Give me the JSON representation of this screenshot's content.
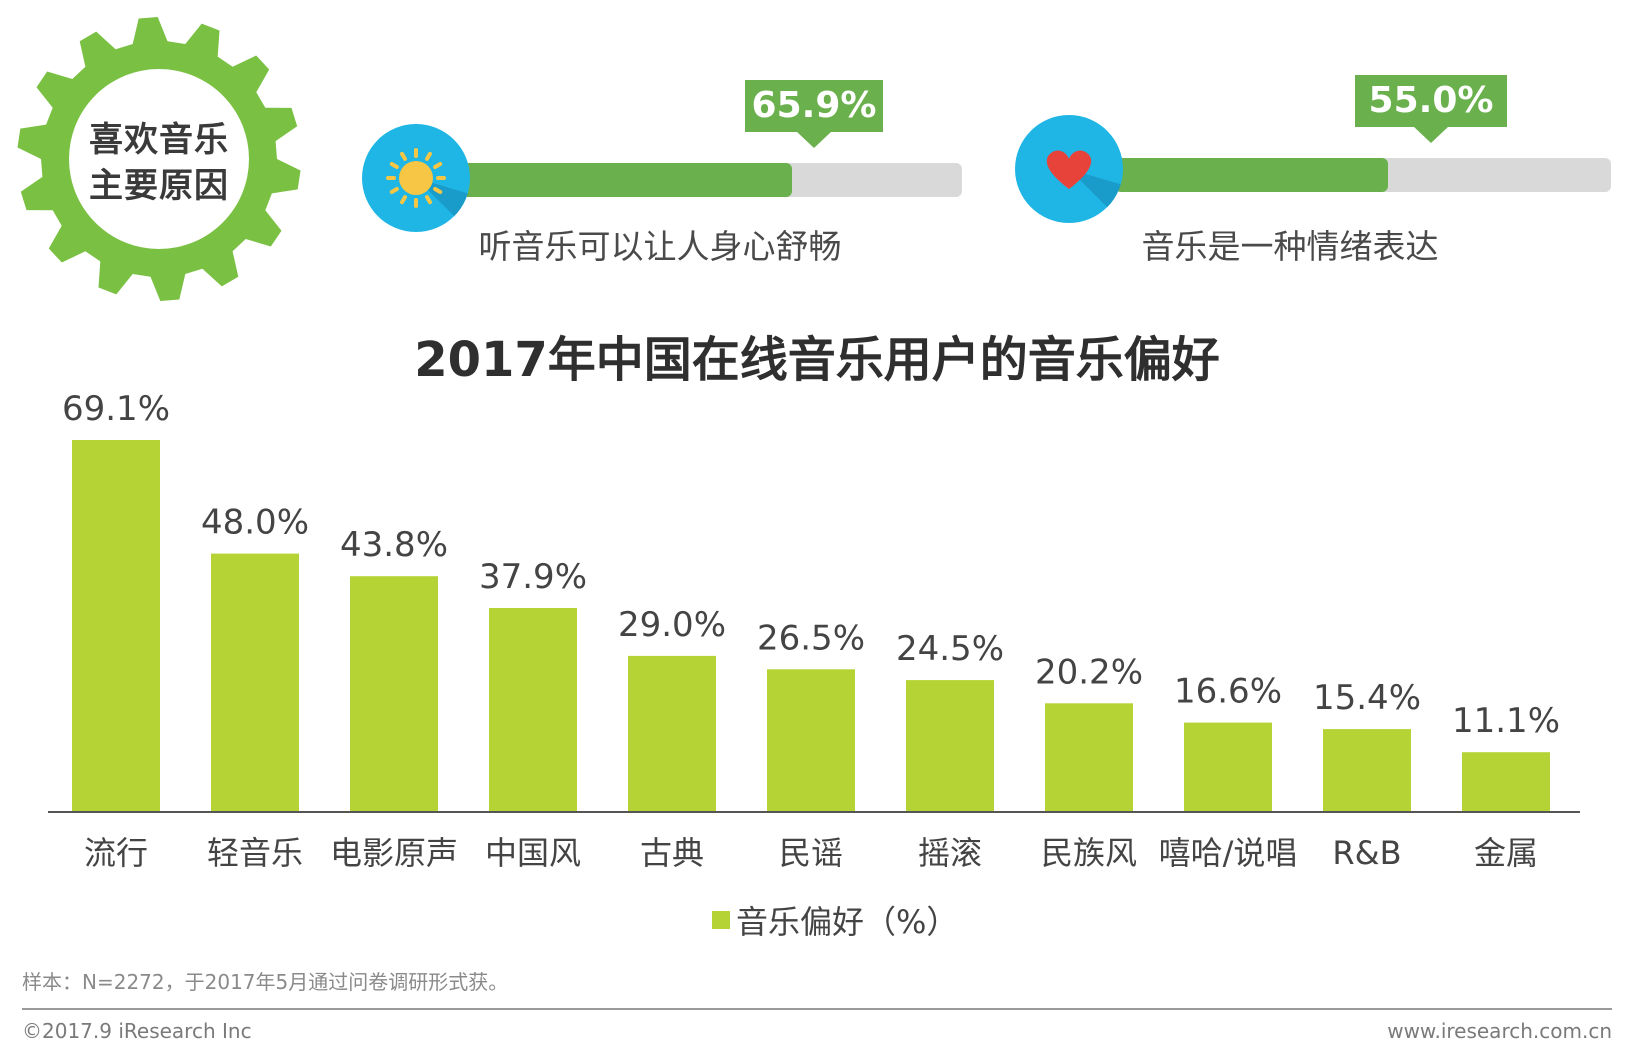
{
  "badge": {
    "line1": "喜欢音乐",
    "line2": "主要原因"
  },
  "reasons": [
    {
      "label": "听音乐可以让人身心舒畅",
      "percent_text": "65.9%",
      "value": 65.9,
      "icon": "sun-icon"
    },
    {
      "label": "音乐是一种情绪表达",
      "percent_text": "55.0%",
      "value": 55.0,
      "icon": "heart-icon"
    }
  ],
  "colors": {
    "bar": "#b5d334",
    "reason_fill": "#6ab04c",
    "track": "#d9d9d9",
    "icon_bg": "#1fb6e6",
    "gear": "#7ac143",
    "sun": "#f6c644",
    "heart": "#e8433a"
  },
  "chart_data": {
    "type": "bar",
    "title": "2017年中国在线音乐用户的音乐偏好",
    "categories": [
      "流行",
      "轻音乐",
      "电影原声",
      "中国风",
      "古典",
      "民谣",
      "摇滚",
      "民族风",
      "嘻哈/说唱",
      "R&B",
      "金属"
    ],
    "values": [
      69.1,
      48.0,
      43.8,
      37.9,
      29.0,
      26.5,
      24.5,
      20.2,
      16.6,
      15.4,
      11.1
    ],
    "value_labels": [
      "69.1%",
      "48.0%",
      "43.8%",
      "37.9%",
      "29.0%",
      "26.5%",
      "24.5%",
      "20.2%",
      "16.6%",
      "15.4%",
      "11.1%"
    ],
    "series_name": "音乐偏好(%)",
    "ylim": [
      0,
      69.1
    ],
    "legend": "bottom-center",
    "grid": false
  },
  "legend": {
    "label": "音乐偏好（%）"
  },
  "footer": {
    "note": "样本：N=2272，于2017年5月通过问卷调研形式获。",
    "copyright": "©2017.9 iResearch Inc",
    "website": "www.iresearch.com.cn"
  }
}
